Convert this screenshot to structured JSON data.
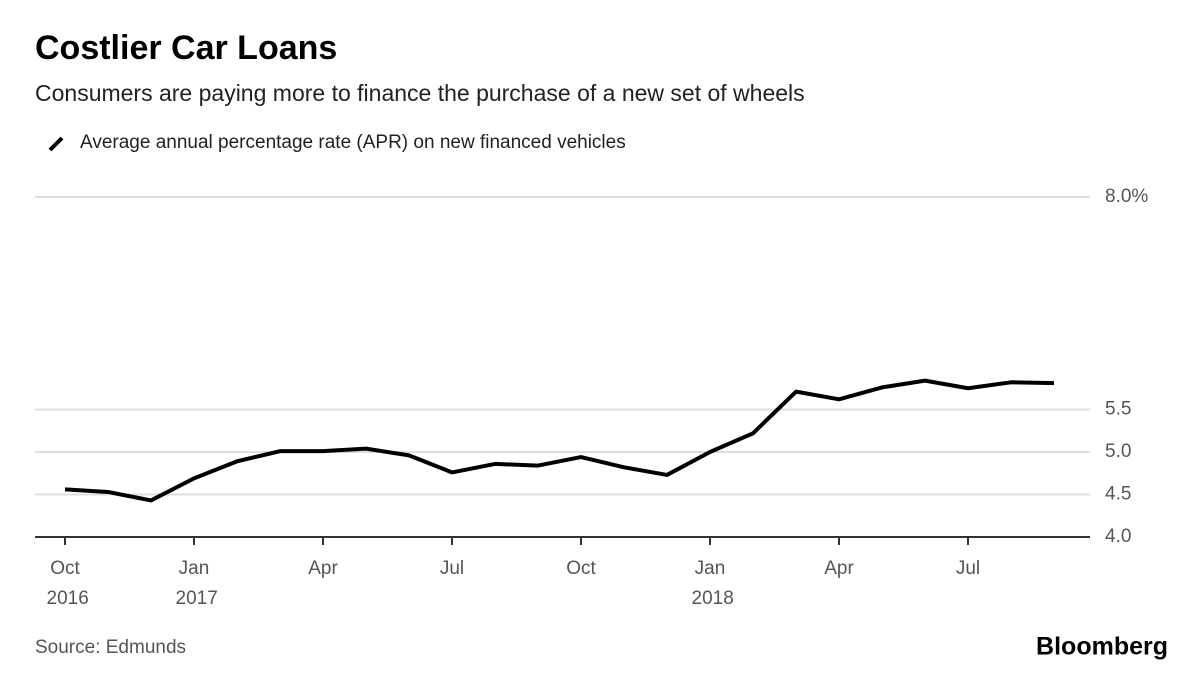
{
  "chart_data": {
    "type": "line",
    "title": "Costlier Car Loans",
    "subtitle": "Consumers are paying more to finance the purchase of a new set of wheels",
    "source": "Source: Edmunds",
    "brand": "Bloomberg",
    "categories": [
      "Oct 2016",
      null,
      null,
      "Jan 2017",
      null,
      null,
      "Apr",
      null,
      null,
      "Jul",
      null,
      null,
      "Oct",
      null,
      null,
      "Jan 2018",
      null,
      null,
      "Apr",
      null,
      null,
      "Jul",
      null,
      null
    ],
    "series": [
      {
        "name": "Average annual percentage rate (APR) on new financed vehicles",
        "color": "#000000",
        "values": [
          4.56,
          4.53,
          4.43,
          4.69,
          4.89,
          5.01,
          5.01,
          5.04,
          4.96,
          4.76,
          4.86,
          4.84,
          4.94,
          4.82,
          4.73,
          5.0,
          5.22,
          5.71,
          5.62,
          5.76,
          5.84,
          5.75,
          5.82,
          5.81
        ]
      }
    ],
    "ylim": [
      4,
      8
    ],
    "yticks": [
      {
        "value": 4,
        "label": "4.0"
      },
      4.5,
      {
        "value": 5,
        "label": "5.0"
      },
      5.5,
      {
        "value": 8,
        "label": "8.0%"
      }
    ],
    "grid": true
  }
}
